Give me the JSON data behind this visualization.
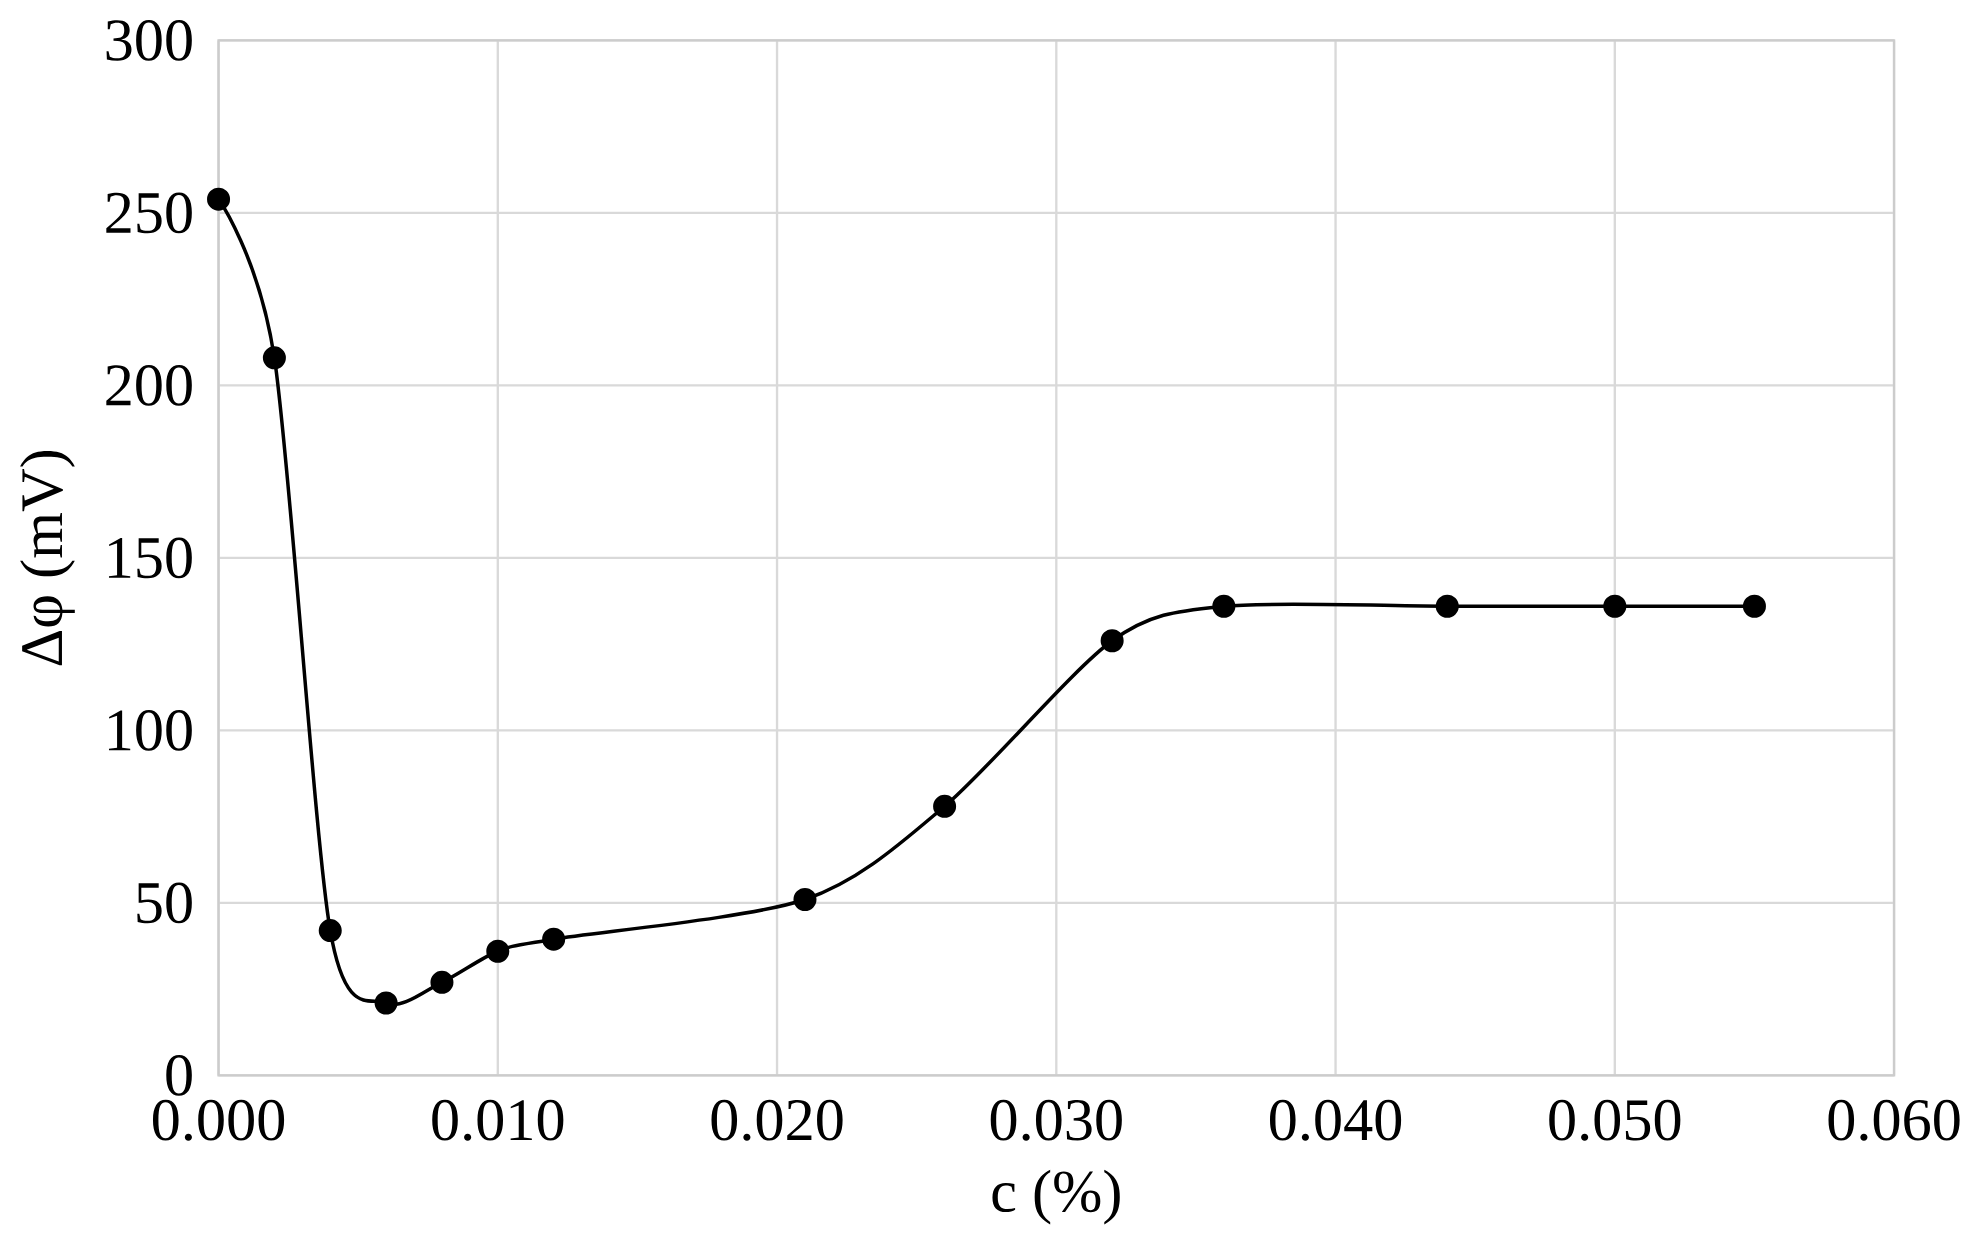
{
  "chart_data": {
    "type": "line",
    "xlabel": "c (%)",
    "ylabel": "Δφ (mV)",
    "x": [
      0.0,
      0.002,
      0.004,
      0.006,
      0.008,
      0.01,
      0.012,
      0.021,
      0.026,
      0.032,
      0.036,
      0.044,
      0.05,
      0.055
    ],
    "values": [
      254,
      208,
      42,
      21,
      27,
      36,
      39.5,
      51,
      78,
      126,
      136,
      136,
      136,
      136
    ],
    "color": "#000000",
    "marker": "circle",
    "grid": true,
    "xlim": [
      0,
      0.06
    ],
    "ylim": [
      0,
      300
    ],
    "xticks": [
      {
        "value": 0,
        "label": "0.000"
      },
      {
        "value": 0.01,
        "label": "0.010"
      },
      {
        "value": 0.02,
        "label": "0.020"
      },
      {
        "value": 0.03,
        "label": "0.030"
      },
      {
        "value": 0.04,
        "label": "0.040"
      },
      {
        "value": 0.05,
        "label": "0.050"
      },
      {
        "value": 0.06,
        "label": "0.060"
      }
    ],
    "yticks": [
      0,
      50,
      100,
      150,
      200,
      250,
      300
    ]
  }
}
